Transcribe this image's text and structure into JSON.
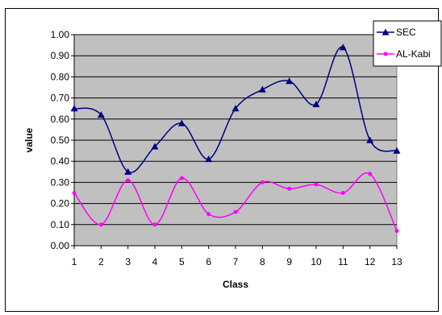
{
  "chart_data": {
    "type": "line",
    "title": "",
    "xlabel": "Class",
    "ylabel": "value",
    "ylim": [
      0,
      1
    ],
    "yticks": [
      "0.00",
      "0.10",
      "0.20",
      "0.30",
      "0.40",
      "0.50",
      "0.60",
      "0.70",
      "0.80",
      "0.90",
      "1.00"
    ],
    "x": [
      1,
      2,
      3,
      4,
      5,
      6,
      7,
      8,
      9,
      10,
      11,
      12,
      13
    ],
    "grid": true,
    "legend": "top-right",
    "series": [
      {
        "name": "SEC",
        "color": "#000080",
        "marker": "triangle",
        "values": [
          0.65,
          0.62,
          0.35,
          0.47,
          0.58,
          0.41,
          0.65,
          0.74,
          0.78,
          0.67,
          0.94,
          0.5,
          0.45
        ]
      },
      {
        "name": "AL-Kabi",
        "color": "#ff00ff",
        "marker": "circle",
        "values": [
          0.25,
          0.1,
          0.31,
          0.1,
          0.32,
          0.15,
          0.16,
          0.3,
          0.27,
          0.29,
          0.25,
          0.34,
          0.07
        ]
      }
    ]
  }
}
